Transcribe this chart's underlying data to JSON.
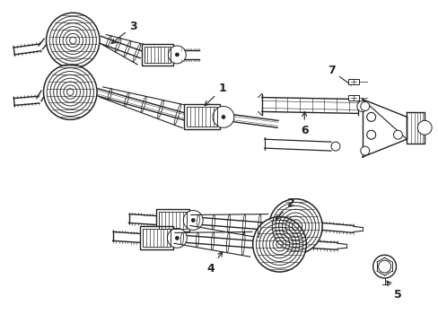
{
  "background_color": "#ffffff",
  "line_color": "#222222",
  "lw": 1.0,
  "figsize": [
    4.89,
    3.6
  ],
  "dpi": 100,
  "label_fontsize": 9
}
